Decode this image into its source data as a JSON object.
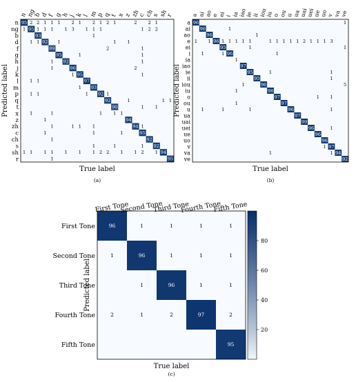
{
  "colors": {
    "low": "#f7fbff",
    "high": "#08306b",
    "border": "#000000",
    "cell_text_dark": "#000000",
    "cell_text_light": "#ffffff"
  },
  "chart_data": [
    {
      "type": "heatmap",
      "panel_label": "(a)",
      "xlabel": "True label",
      "ylabel": "Predicted label",
      "labels": [
        "n",
        "ng",
        "b",
        "d",
        "f",
        "g",
        "h",
        "j",
        "k",
        "l",
        "m",
        "p",
        "q",
        "t",
        "x",
        "z",
        "zh",
        "c",
        "ch",
        "s",
        "sh",
        "r"
      ],
      "diagonal": [
        95,
        95,
        93,
        92,
        89,
        95,
        92,
        96,
        95,
        97,
        93,
        92,
        92,
        90,
        95,
        94,
        94,
        95,
        92,
        92,
        94,
        95
      ],
      "off_diagonal": [
        {
          "row": "n",
          "col": "ng",
          "value": 2
        },
        {
          "row": "n",
          "col": "b",
          "value": 2
        },
        {
          "row": "n",
          "col": "d",
          "value": 1
        },
        {
          "row": "n",
          "col": "f",
          "value": 1
        },
        {
          "row": "n",
          "col": "g",
          "value": 1
        },
        {
          "row": "n",
          "col": "j",
          "value": 2
        },
        {
          "row": "n",
          "col": "k",
          "value": 1
        },
        {
          "row": "n",
          "col": "m",
          "value": 2
        },
        {
          "row": "n",
          "col": "p",
          "value": 1
        },
        {
          "row": "n",
          "col": "q",
          "value": 2
        },
        {
          "row": "n",
          "col": "t",
          "value": 1
        },
        {
          "row": "n",
          "col": "zh",
          "value": 2
        },
        {
          "row": "n",
          "col": "ch",
          "value": 2
        },
        {
          "row": "n",
          "col": "s",
          "value": 1
        },
        {
          "row": "ng",
          "col": "n",
          "value": 1
        },
        {
          "row": "ng",
          "col": "b",
          "value": 1
        },
        {
          "row": "ng",
          "col": "d",
          "value": 1
        },
        {
          "row": "ng",
          "col": "f",
          "value": 1
        },
        {
          "row": "ng",
          "col": "h",
          "value": 1
        },
        {
          "row": "ng",
          "col": "j",
          "value": 3
        },
        {
          "row": "ng",
          "col": "l",
          "value": 1
        },
        {
          "row": "ng",
          "col": "m",
          "value": 1
        },
        {
          "row": "ng",
          "col": "p",
          "value": 1
        },
        {
          "row": "ng",
          "col": "c",
          "value": 1
        },
        {
          "row": "ng",
          "col": "ch",
          "value": 2
        },
        {
          "row": "ng",
          "col": "s",
          "value": 2
        },
        {
          "row": "b",
          "col": "m",
          "value": 1
        },
        {
          "row": "d",
          "col": "ng",
          "value": 1
        },
        {
          "row": "d",
          "col": "b",
          "value": 1
        },
        {
          "row": "d",
          "col": "g",
          "value": 1
        },
        {
          "row": "d",
          "col": "t",
          "value": 1
        },
        {
          "row": "d",
          "col": "z",
          "value": 1
        },
        {
          "row": "f",
          "col": "q",
          "value": 2
        },
        {
          "row": "f",
          "col": "c",
          "value": 1
        },
        {
          "row": "g",
          "col": "k",
          "value": 1
        },
        {
          "row": "g",
          "col": "c",
          "value": 1
        },
        {
          "row": "h",
          "col": "f",
          "value": 1
        },
        {
          "row": "h",
          "col": "c",
          "value": 1
        },
        {
          "row": "j",
          "col": "f",
          "value": 1
        },
        {
          "row": "j",
          "col": "zh",
          "value": 2
        },
        {
          "row": "k",
          "col": "j",
          "value": 1
        },
        {
          "row": "k",
          "col": "c",
          "value": 1
        },
        {
          "row": "l",
          "col": "ng",
          "value": 1
        },
        {
          "row": "l",
          "col": "b",
          "value": 1
        },
        {
          "row": "m",
          "col": "k",
          "value": 1
        },
        {
          "row": "p",
          "col": "ng",
          "value": 1
        },
        {
          "row": "p",
          "col": "b",
          "value": 1
        },
        {
          "row": "p",
          "col": "l",
          "value": 1
        },
        {
          "row": "p",
          "col": "q",
          "value": 1
        },
        {
          "row": "q",
          "col": "z",
          "value": 1
        },
        {
          "row": "q",
          "col": "sh",
          "value": 1
        },
        {
          "row": "q",
          "col": "r",
          "value": 1
        },
        {
          "row": "t",
          "col": "c",
          "value": 1
        },
        {
          "row": "t",
          "col": "s",
          "value": 1
        },
        {
          "row": "x",
          "col": "ng",
          "value": 1
        },
        {
          "row": "x",
          "col": "f",
          "value": 1
        },
        {
          "row": "x",
          "col": "p",
          "value": 1
        },
        {
          "row": "x",
          "col": "t",
          "value": 1
        },
        {
          "row": "x",
          "col": "x",
          "value": 1
        },
        {
          "row": "z",
          "col": "d",
          "value": 1
        },
        {
          "row": "zh",
          "col": "f",
          "value": 1
        },
        {
          "row": "zh",
          "col": "j",
          "value": 1
        },
        {
          "row": "zh",
          "col": "k",
          "value": 1
        },
        {
          "row": "zh",
          "col": "m",
          "value": 1
        },
        {
          "row": "zh",
          "col": "c",
          "value": 1
        },
        {
          "row": "c",
          "col": "d",
          "value": 1
        },
        {
          "row": "c",
          "col": "m",
          "value": 1
        },
        {
          "row": "c",
          "col": "x",
          "value": 1
        },
        {
          "row": "ch",
          "col": "f",
          "value": 1
        },
        {
          "row": "s",
          "col": "m",
          "value": 1
        },
        {
          "row": "s",
          "col": "t",
          "value": 1
        },
        {
          "row": "s",
          "col": "c",
          "value": 1
        },
        {
          "row": "sh",
          "col": "n",
          "value": 1
        },
        {
          "row": "sh",
          "col": "ng",
          "value": 1
        },
        {
          "row": "sh",
          "col": "d",
          "value": 1
        },
        {
          "row": "sh",
          "col": "f",
          "value": 1
        },
        {
          "row": "sh",
          "col": "h",
          "value": 1
        },
        {
          "row": "sh",
          "col": "k",
          "value": 1
        },
        {
          "row": "sh",
          "col": "m",
          "value": 1
        },
        {
          "row": "sh",
          "col": "p",
          "value": 2
        },
        {
          "row": "sh",
          "col": "q",
          "value": 2
        },
        {
          "row": "sh",
          "col": "x",
          "value": 1
        },
        {
          "row": "sh",
          "col": "zh",
          "value": 1
        },
        {
          "row": "sh",
          "col": "c",
          "value": 2
        },
        {
          "row": "sh",
          "col": "s",
          "value": 1
        },
        {
          "row": "r",
          "col": "f",
          "value": 1
        }
      ]
    },
    {
      "type": "heatmap",
      "panel_label": "(b)",
      "xlabel": "True label",
      "ylabel": "Predicted label",
      "labels": [
        "a",
        "ai",
        "ao",
        "e",
        "ei",
        "i",
        "ia",
        "iao",
        "ie",
        "ii",
        "iou",
        "iu",
        "o",
        "ou",
        "u",
        "ua",
        "uai",
        "uei",
        "ue",
        "uo",
        "v",
        "va",
        "ve"
      ],
      "diagonal": [
        96,
        96,
        96,
        96,
        95,
        96,
        97,
        97,
        95,
        95,
        96,
        98,
        97,
        97,
        96,
        97,
        99,
        96,
        96,
        96,
        97,
        94,
        92
      ],
      "off_diagonal": [
        {
          "row": "a",
          "col": "ve",
          "value": 1
        },
        {
          "row": "ai",
          "col": "i",
          "value": 1
        },
        {
          "row": "ao",
          "col": "ii",
          "value": 1
        },
        {
          "row": "e",
          "col": "a",
          "value": 1
        },
        {
          "row": "e",
          "col": "ao",
          "value": 1
        },
        {
          "row": "e",
          "col": "ei",
          "value": 1
        },
        {
          "row": "e",
          "col": "i",
          "value": 1
        },
        {
          "row": "e",
          "col": "ia",
          "value": 1
        },
        {
          "row": "e",
          "col": "iao",
          "value": 1
        },
        {
          "row": "e",
          "col": "ie",
          "value": 1
        },
        {
          "row": "e",
          "col": "iu",
          "value": 1
        },
        {
          "row": "e",
          "col": "o",
          "value": 1
        },
        {
          "row": "e",
          "col": "ou",
          "value": 1
        },
        {
          "row": "e",
          "col": "u",
          "value": 1
        },
        {
          "row": "e",
          "col": "ua",
          "value": 1
        },
        {
          "row": "e",
          "col": "uai",
          "value": 2
        },
        {
          "row": "e",
          "col": "uei",
          "value": 1
        },
        {
          "row": "e",
          "col": "ue",
          "value": 1
        },
        {
          "row": "e",
          "col": "uo",
          "value": 1
        },
        {
          "row": "e",
          "col": "v",
          "value": 3
        },
        {
          "row": "ei",
          "col": "ie",
          "value": 1
        },
        {
          "row": "ei",
          "col": "ve",
          "value": 1
        },
        {
          "row": "i",
          "col": "ai",
          "value": 1
        },
        {
          "row": "i",
          "col": "ei",
          "value": 1
        },
        {
          "row": "i",
          "col": "o",
          "value": 1
        },
        {
          "row": "ia",
          "col": "ia",
          "value": 1
        },
        {
          "row": "ie",
          "col": "iu",
          "value": 1
        },
        {
          "row": "ie",
          "col": "v",
          "value": 1
        },
        {
          "row": "ii",
          "col": "v",
          "value": 1
        },
        {
          "row": "io",
          "col": "io",
          "value": 1
        },
        {
          "row": "iou",
          "col": "iao",
          "value": 1
        },
        {
          "row": "iou",
          "col": "ve",
          "value": 5
        },
        {
          "row": "iu",
          "col": "ia",
          "value": 1
        },
        {
          "row": "o",
          "col": "ue",
          "value": 1
        },
        {
          "row": "o",
          "col": "v",
          "value": 1
        },
        {
          "row": "ou",
          "col": "ia",
          "value": 1
        },
        {
          "row": "u",
          "col": "ai",
          "value": 1
        },
        {
          "row": "u",
          "col": "ei",
          "value": 1
        },
        {
          "row": "u",
          "col": "ie",
          "value": 1
        },
        {
          "row": "u",
          "col": "v",
          "value": 1
        },
        {
          "row": "uei",
          "col": "v",
          "value": 1
        },
        {
          "row": "v",
          "col": "uo",
          "value": 1
        },
        {
          "row": "va",
          "col": "iu",
          "value": 1
        },
        {
          "row": "va",
          "col": "v",
          "value": 1
        }
      ]
    },
    {
      "type": "heatmap",
      "panel_label": "(c)",
      "xlabel": "True label",
      "ylabel": "Predicted label",
      "labels": [
        "First Tone",
        "Second Tone",
        "Third Tone",
        "Fourth Tone",
        "Fifth Tone"
      ],
      "matrix": [
        [
          96,
          1,
          1,
          1,
          1
        ],
        [
          1,
          96,
          1,
          1,
          1
        ],
        [
          null,
          1,
          96,
          1,
          1
        ],
        [
          2,
          1,
          2,
          97,
          2
        ],
        [
          null,
          null,
          null,
          null,
          95
        ]
      ],
      "colorbar": {
        "min": 0,
        "max": 100,
        "ticks": [
          20,
          40,
          60,
          80
        ]
      }
    }
  ]
}
